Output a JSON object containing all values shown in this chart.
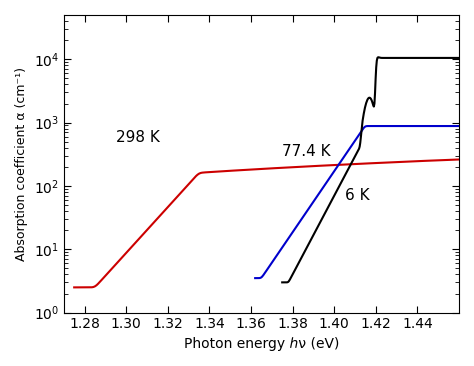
{
  "title": "",
  "xlabel": "Photon energy ℎν (eV)",
  "ylabel": "Absorption coefficient α (cm⁻¹)",
  "xlim": [
    1.27,
    1.46
  ],
  "ylim_log": [
    1.0,
    50000.0
  ],
  "xticks": [
    1.28,
    1.3,
    1.32,
    1.34,
    1.36,
    1.38,
    1.4,
    1.42,
    1.44
  ],
  "background_color": "#ffffff",
  "colors": {
    "298K": "#cc0000",
    "77K": "#0000cc",
    "6K": "#000000"
  },
  "labels": {
    "298K": "298 K",
    "77K": "77.4 K",
    "6K": "6 K"
  },
  "label_positions": {
    "298K": [
      1.295,
      500
    ],
    "77K": [
      1.375,
      300
    ],
    "6K": [
      1.405,
      60
    ]
  }
}
